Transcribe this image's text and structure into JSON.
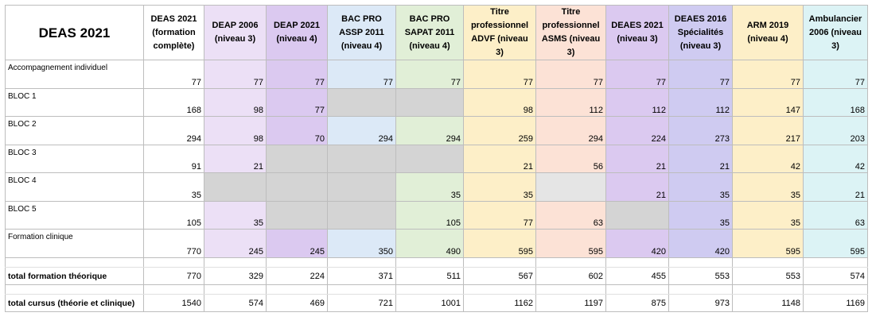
{
  "table": {
    "title": "DEAS 2021",
    "columns": [
      {
        "label": "DEAS 2021 (formation complète)",
        "color": "#ffffff"
      },
      {
        "label": "DEAP 2006 (niveau 3)",
        "color": "#ece0f6"
      },
      {
        "label": "DEAP 2021 (niveau 4)",
        "color": "#dbc9f0"
      },
      {
        "label": "BAC PRO ASSP 2011 (niveau 4)",
        "color": "#dce9f7"
      },
      {
        "label": "BAC PRO SAPAT 2011 (niveau 4)",
        "color": "#e1efd7"
      },
      {
        "label": "Titre professionnel ADVF (niveau 3)",
        "color": "#fdefc8"
      },
      {
        "label": "Titre professionnel ASMS (niveau 3)",
        "color": "#fce2d6"
      },
      {
        "label": "DEAES 2021 (niveau 3)",
        "color": "#dbc9f0"
      },
      {
        "label": "DEAES 2016 Spécialités (niveau 3)",
        "color": "#cfcbf1"
      },
      {
        "label": "ARM 2019 (niveau 4)",
        "color": "#fdefc8"
      },
      {
        "label": "Ambulancier 2006 (niveau 3)",
        "color": "#dcf3f5"
      }
    ],
    "rows": [
      {
        "label": "Accompagnement individuel",
        "values": [
          "77",
          "77",
          "77",
          "77",
          "77",
          "77",
          "77",
          "77",
          "77",
          "77",
          "77"
        ]
      },
      {
        "label": "BLOC 1",
        "values": [
          "168",
          "98",
          "77",
          "",
          "",
          "98",
          "112",
          "112",
          "112",
          "147",
          "168"
        ]
      },
      {
        "label": "BLOC 2",
        "values": [
          "294",
          "98",
          "70",
          "294",
          "294",
          "259",
          "294",
          "224",
          "273",
          "217",
          "203"
        ]
      },
      {
        "label": "BLOC 3",
        "values": [
          "91",
          "21",
          "",
          "",
          "",
          "21",
          "56",
          "21",
          "21",
          "42",
          "42"
        ]
      },
      {
        "label": "BLOC 4",
        "values": [
          "35",
          "",
          "",
          "",
          "35",
          "35",
          "",
          "21",
          "35",
          "35",
          "21"
        ]
      },
      {
        "label": "BLOC 5",
        "values": [
          "105",
          "35",
          "",
          "",
          "105",
          "77",
          "63",
          "",
          "35",
          "35",
          "63"
        ]
      },
      {
        "label": "Formation clinique",
        "values": [
          "770",
          "245",
          "245",
          "350",
          "490",
          "595",
          "595",
          "420",
          "420",
          "595",
          "595"
        ]
      }
    ],
    "total_theorique": {
      "label": "total formation théorique",
      "values": [
        "770",
        "329",
        "224",
        "371",
        "511",
        "567",
        "602",
        "455",
        "553",
        "553",
        "574"
      ]
    },
    "total_cursus": {
      "label": "total cursus (théorie et clinique)",
      "values": [
        "1540",
        "574",
        "469",
        "721",
        "1001",
        "1162",
        "1197",
        "875",
        "973",
        "1148",
        "1169"
      ]
    },
    "grey_color": "#d4d4d4",
    "light_grey_color": "#e5e5e5"
  }
}
